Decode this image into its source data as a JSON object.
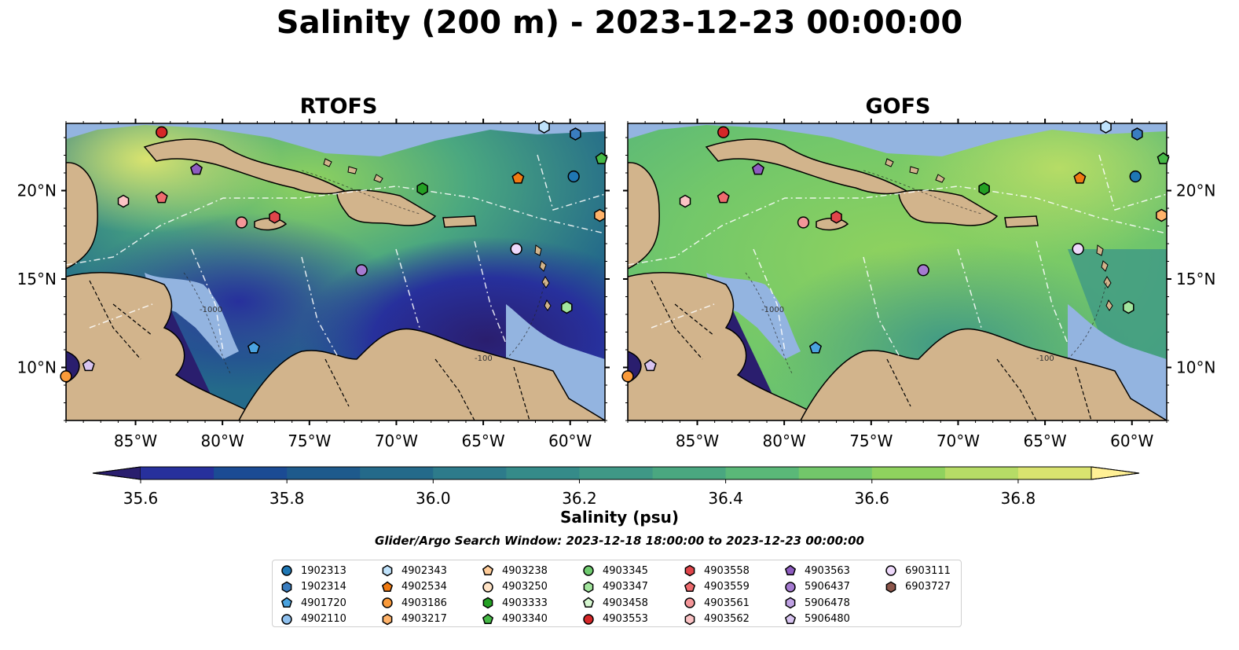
{
  "figure": {
    "title": "Salinity (200 m) - 2023-12-23 00:00:00",
    "search_window": "Glider/Argo Search Window: 2023-12-18 18:00:00 to 2023-12-23 00:00:00"
  },
  "map": {
    "lon_range": [
      -89,
      -58
    ],
    "lat_range": [
      7,
      23.8
    ],
    "lon_ticks": [
      -85,
      -80,
      -75,
      -70,
      -65,
      -60
    ],
    "lon_tick_labels": [
      "85°W",
      "80°W",
      "75°W",
      "70°W",
      "65°W",
      "60°W"
    ],
    "lat_ticks": [
      10,
      15,
      20
    ],
    "lat_tick_labels": [
      "10°N",
      "15°N",
      "20°N"
    ],
    "contour_labels": [
      "-100",
      "-1000"
    ],
    "colors": {
      "land": "#d2b48c",
      "shallow_water": "#93b4e0",
      "ocean_background": "#2b1a6b"
    }
  },
  "panels": [
    {
      "id": "rtofs",
      "title": "RTOFS"
    },
    {
      "id": "gofs",
      "title": "GOFS"
    }
  ],
  "colorbar": {
    "label": "Salinity (psu)",
    "min": 35.6,
    "max": 36.9,
    "step": 0.1,
    "extend": "both",
    "ticks": [
      "35.6",
      "35.8",
      "36.0",
      "36.2",
      "36.4",
      "36.6",
      "36.8"
    ],
    "colors": [
      "#2a1e6e",
      "#27309c",
      "#1b4b94",
      "#1e5a8c",
      "#246a8a",
      "#2d7b8b",
      "#358b89",
      "#3f9886",
      "#4aa780",
      "#5ab878",
      "#72c76a",
      "#8fd25e",
      "#b6dc66",
      "#d9e36f",
      "#fff095"
    ]
  },
  "legend": {
    "items": [
      {
        "label": "1902313",
        "shape": "circle",
        "color": "#1f77b4"
      },
      {
        "label": "1902314",
        "shape": "hexagon",
        "color": "#3a7dc0"
      },
      {
        "label": "4901720",
        "shape": "pentagon",
        "color": "#4aa3e0"
      },
      {
        "label": "4902110",
        "shape": "circle",
        "color": "#8ec0ee"
      },
      {
        "label": "4902343",
        "shape": "hexagon",
        "color": "#bfe2fb"
      },
      {
        "label": "4902534",
        "shape": "pentagon",
        "color": "#f07a12"
      },
      {
        "label": "4903186",
        "shape": "circle",
        "color": "#f99a3a"
      },
      {
        "label": "4903217",
        "shape": "hexagon",
        "color": "#ffb36a"
      },
      {
        "label": "4903238",
        "shape": "pentagon",
        "color": "#ffcc99"
      },
      {
        "label": "4903250",
        "shape": "circle",
        "color": "#ffe3c6"
      },
      {
        "label": "4903333",
        "shape": "hexagon",
        "color": "#23a023"
      },
      {
        "label": "4903340",
        "shape": "pentagon",
        "color": "#46b946"
      },
      {
        "label": "4903345",
        "shape": "circle",
        "color": "#6fcb6f"
      },
      {
        "label": "4903347",
        "shape": "hexagon",
        "color": "#a2e59d"
      },
      {
        "label": "4903458",
        "shape": "pentagon",
        "color": "#d6f7d0"
      },
      {
        "label": "4903553",
        "shape": "circle",
        "color": "#d62728"
      },
      {
        "label": "4903558",
        "shape": "hexagon",
        "color": "#e0454a"
      },
      {
        "label": "4903559",
        "shape": "pentagon",
        "color": "#ee6b6e"
      },
      {
        "label": "4903561",
        "shape": "circle",
        "color": "#f49699"
      },
      {
        "label": "4903562",
        "shape": "hexagon",
        "color": "#fbc3c5"
      },
      {
        "label": "4903563",
        "shape": "pentagon",
        "color": "#8e5cc0"
      },
      {
        "label": "5906437",
        "shape": "circle",
        "color": "#a57ad0"
      },
      {
        "label": "5906478",
        "shape": "hexagon",
        "color": "#bfa1e3"
      },
      {
        "label": "5906480",
        "shape": "pentagon",
        "color": "#d8c4f0"
      },
      {
        "label": "6903111",
        "shape": "circle",
        "color": "#eed9fb"
      },
      {
        "label": "6903727",
        "shape": "hexagon",
        "color": "#8c564b"
      }
    ]
  },
  "floats": [
    {
      "id": "4903553",
      "lon": -83.5,
      "lat": 23.3
    },
    {
      "id": "5906437",
      "lon": -72.0,
      "lat": 15.5
    },
    {
      "id": "4903559",
      "lon": -83.5,
      "lat": 19.6
    },
    {
      "id": "4903562",
      "lon": -85.7,
      "lat": 19.4
    },
    {
      "id": "4903563",
      "lon": -81.5,
      "lat": 21.2
    },
    {
      "id": "4903561",
      "lon": -78.9,
      "lat": 18.2
    },
    {
      "id": "4903558",
      "lon": -77.0,
      "lat": 18.5
    },
    {
      "id": "4903333",
      "lon": -68.5,
      "lat": 20.1
    },
    {
      "id": "4902534",
      "lon": -63.0,
      "lat": 20.7
    },
    {
      "id": "1902313",
      "lon": -59.8,
      "lat": 20.8
    },
    {
      "id": "1902314",
      "lon": -59.7,
      "lat": 23.2
    },
    {
      "id": "4902343",
      "lon": -61.5,
      "lat": 23.6
    },
    {
      "id": "4903340",
      "lon": -58.2,
      "lat": 21.8
    },
    {
      "id": "4903217",
      "lon": -58.3,
      "lat": 18.6
    },
    {
      "id": "6903111",
      "lon": -63.1,
      "lat": 16.7
    },
    {
      "id": "4903347",
      "lon": -60.2,
      "lat": 13.4
    },
    {
      "id": "4901720",
      "lon": -78.2,
      "lat": 11.1
    },
    {
      "id": "5906480",
      "lon": -87.7,
      "lat": 10.1
    },
    {
      "id": "4903186",
      "lon": -89.0,
      "lat": 9.5
    }
  ]
}
